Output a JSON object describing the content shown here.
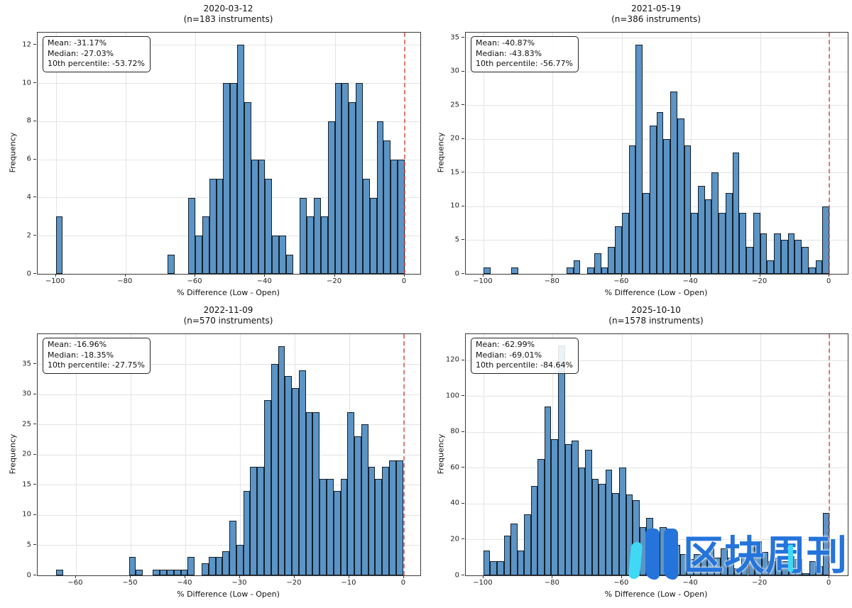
{
  "page": {
    "background": "#ffffff"
  },
  "style": {
    "bar_fill": "#5b94c5",
    "bar_edge": "#000000",
    "zero_line_color": "#da4642",
    "grid_color": "#e4e4e4",
    "spine_color": "#3a3a3a",
    "watermark_blue": "#2574db",
    "watermark_cyan": "#3fd9f6"
  },
  "watermark": {
    "text": "区块周刊"
  },
  "chart_data": [
    {
      "type": "bar",
      "title": "2020-03-12",
      "subtitle": "(n=183 instruments)",
      "xlabel": "% Difference (Low - Open)",
      "ylabel": "Frequency",
      "stats": [
        "Mean: -31.17%",
        "Median: -27.03%",
        "10th percentile: -53.72%"
      ],
      "xlim": [
        -105.2,
        4.5
      ],
      "ylim": [
        0,
        12.65
      ],
      "xticks": [
        -100,
        -80,
        -60,
        -40,
        -20,
        0
      ],
      "yticks": [
        0,
        2,
        4,
        6,
        8,
        10,
        12
      ],
      "bin_width": 2,
      "zero_line_x": 0,
      "bars": [
        [
          -100,
          3
        ],
        [
          -68,
          1
        ],
        [
          -62,
          4
        ],
        [
          -60,
          2
        ],
        [
          -58,
          3
        ],
        [
          -56,
          5
        ],
        [
          -54,
          5
        ],
        [
          -52,
          10
        ],
        [
          -50,
          10
        ],
        [
          -48,
          12
        ],
        [
          -46,
          9
        ],
        [
          -44,
          6
        ],
        [
          -42,
          6
        ],
        [
          -40,
          5
        ],
        [
          -38,
          2
        ],
        [
          -36,
          2
        ],
        [
          -34,
          1
        ],
        [
          -30,
          4
        ],
        [
          -28,
          3
        ],
        [
          -26,
          4
        ],
        [
          -24,
          3
        ],
        [
          -22,
          8
        ],
        [
          -20,
          10
        ],
        [
          -18,
          10
        ],
        [
          -16,
          9
        ],
        [
          -14,
          10
        ],
        [
          -12,
          5
        ],
        [
          -10,
          4
        ],
        [
          -8,
          8
        ],
        [
          -6,
          7
        ],
        [
          -4,
          6
        ],
        [
          -2,
          6
        ]
      ]
    },
    {
      "type": "bar",
      "title": "2021-05-19",
      "subtitle": "(n=386 instruments)",
      "xlabel": "% Difference (Low - Open)",
      "ylabel": "Frequency",
      "stats": [
        "Mean: -40.87%",
        "Median: -43.83%",
        "10th percentile: -56.77%"
      ],
      "xlim": [
        -105.1,
        5.3
      ],
      "ylim": [
        0,
        35.75
      ],
      "xticks": [
        -100,
        -80,
        -60,
        -40,
        -20,
        0
      ],
      "yticks": [
        0,
        5,
        10,
        15,
        20,
        25,
        30,
        35
      ],
      "bin_width": 2,
      "zero_line_x": 0,
      "bars": [
        [
          -100,
          1
        ],
        [
          -92,
          1
        ],
        [
          -76,
          1
        ],
        [
          -74,
          2
        ],
        [
          -70,
          1
        ],
        [
          -68,
          3
        ],
        [
          -66,
          1
        ],
        [
          -64,
          4
        ],
        [
          -62,
          7
        ],
        [
          -60,
          9
        ],
        [
          -58,
          19
        ],
        [
          -56,
          34
        ],
        [
          -54,
          12
        ],
        [
          -52,
          22
        ],
        [
          -50,
          24
        ],
        [
          -48,
          20
        ],
        [
          -46,
          27
        ],
        [
          -44,
          23
        ],
        [
          -42,
          19
        ],
        [
          -40,
          9
        ],
        [
          -38,
          13
        ],
        [
          -36,
          11
        ],
        [
          -34,
          15
        ],
        [
          -32,
          9
        ],
        [
          -30,
          12
        ],
        [
          -28,
          18
        ],
        [
          -26,
          9
        ],
        [
          -24,
          4
        ],
        [
          -22,
          9
        ],
        [
          -20,
          6
        ],
        [
          -18,
          2
        ],
        [
          -16,
          6
        ],
        [
          -14,
          5
        ],
        [
          -12,
          6
        ],
        [
          -10,
          5
        ],
        [
          -8,
          4
        ],
        [
          -6,
          1
        ],
        [
          -4,
          2
        ],
        [
          -2,
          10
        ]
      ]
    },
    {
      "type": "bar",
      "title": "2022-11-09",
      "subtitle": "(n=570 instruments)",
      "xlabel": "% Difference (Low - Open)",
      "ylabel": "Frequency",
      "stats": [
        "Mean: -16.96%",
        "Median: -18.35%",
        "10th percentile: -27.75%"
      ],
      "xlim": [
        -67.0,
        3.0
      ],
      "ylim": [
        0,
        39.95
      ],
      "xticks": [
        -60,
        -50,
        -40,
        -30,
        -20,
        -10,
        0
      ],
      "yticks": [
        0,
        5,
        10,
        15,
        20,
        25,
        30,
        35
      ],
      "bin_width": 1.27,
      "zero_line_x": 0,
      "bars": [
        [
          -63.6,
          1
        ],
        [
          -50.3,
          3
        ],
        [
          -49.03,
          1
        ],
        [
          -45.9,
          1
        ],
        [
          -44.63,
          1
        ],
        [
          -43.36,
          1
        ],
        [
          -42.09,
          1
        ],
        [
          -40.82,
          1
        ],
        [
          -39.55,
          3
        ],
        [
          -37.0,
          2
        ],
        [
          -35.73,
          3
        ],
        [
          -34.46,
          3
        ],
        [
          -33.19,
          4
        ],
        [
          -31.92,
          9
        ],
        [
          -30.65,
          5
        ],
        [
          -29.38,
          14
        ],
        [
          -28.11,
          18
        ],
        [
          -26.84,
          18
        ],
        [
          -25.57,
          29
        ],
        [
          -24.3,
          35
        ],
        [
          -23.03,
          38
        ],
        [
          -21.76,
          33
        ],
        [
          -20.49,
          31
        ],
        [
          -19.22,
          34
        ],
        [
          -17.95,
          27
        ],
        [
          -16.68,
          27
        ],
        [
          -15.41,
          16
        ],
        [
          -14.14,
          16
        ],
        [
          -12.87,
          14
        ],
        [
          -11.6,
          16
        ],
        [
          -10.33,
          27
        ],
        [
          -9.06,
          23
        ],
        [
          -7.79,
          25
        ],
        [
          -6.52,
          18
        ],
        [
          -5.25,
          16
        ],
        [
          -3.98,
          18
        ],
        [
          -2.71,
          19
        ],
        [
          -1.44,
          19
        ]
      ]
    },
    {
      "type": "bar",
      "title": "2025-10-10",
      "subtitle": "(n=1578 instruments)",
      "xlabel": "% Difference (Low - Open)",
      "ylabel": "Frequency",
      "stats": [
        "Mean: -62.99%",
        "Median: -69.01%",
        "10th percentile: -84.64%"
      ],
      "xlim": [
        -105.1,
        5.3
      ],
      "ylim": [
        0,
        134.5
      ],
      "xticks": [
        -100,
        -80,
        -60,
        -40,
        -20,
        0
      ],
      "yticks": [
        0,
        20,
        40,
        60,
        80,
        100,
        120
      ],
      "bin_width": 1.96,
      "zero_line_x": 0,
      "bars": [
        [
          -100,
          14
        ],
        [
          -98.04,
          8
        ],
        [
          -96.08,
          8
        ],
        [
          -94.12,
          22
        ],
        [
          -92.16,
          29
        ],
        [
          -90.2,
          14
        ],
        [
          -88.24,
          34
        ],
        [
          -86.27,
          50
        ],
        [
          -84.31,
          65
        ],
        [
          -82.35,
          94
        ],
        [
          -80.39,
          76
        ],
        [
          -78.43,
          128
        ],
        [
          -76.47,
          73
        ],
        [
          -74.51,
          75
        ],
        [
          -72.55,
          60
        ],
        [
          -70.59,
          70
        ],
        [
          -68.63,
          54
        ],
        [
          -66.67,
          51
        ],
        [
          -64.71,
          59
        ],
        [
          -62.75,
          46
        ],
        [
          -60.78,
          60
        ],
        [
          -58.82,
          45
        ],
        [
          -56.86,
          42
        ],
        [
          -54.9,
          27
        ],
        [
          -52.94,
          32
        ],
        [
          -50.98,
          19
        ],
        [
          -49.02,
          27
        ],
        [
          -47.06,
          26
        ],
        [
          -45.1,
          17
        ],
        [
          -43.14,
          12
        ],
        [
          -41.18,
          9
        ],
        [
          -39.22,
          12
        ],
        [
          -37.25,
          11
        ],
        [
          -35.29,
          15
        ],
        [
          -33.33,
          10
        ],
        [
          -31.37,
          15
        ],
        [
          -29.41,
          10
        ],
        [
          -27.45,
          4
        ],
        [
          -25.49,
          12
        ],
        [
          -23.53,
          18
        ],
        [
          -21.57,
          19
        ],
        [
          -19.61,
          13
        ],
        [
          -17.65,
          8
        ],
        [
          -15.69,
          10
        ],
        [
          -13.73,
          8
        ],
        [
          -11.76,
          9
        ],
        [
          -9.8,
          9
        ],
        [
          -7.84,
          1
        ],
        [
          -5.88,
          8
        ],
        [
          -3.92,
          5
        ],
        [
          -1.96,
          35
        ]
      ]
    }
  ]
}
